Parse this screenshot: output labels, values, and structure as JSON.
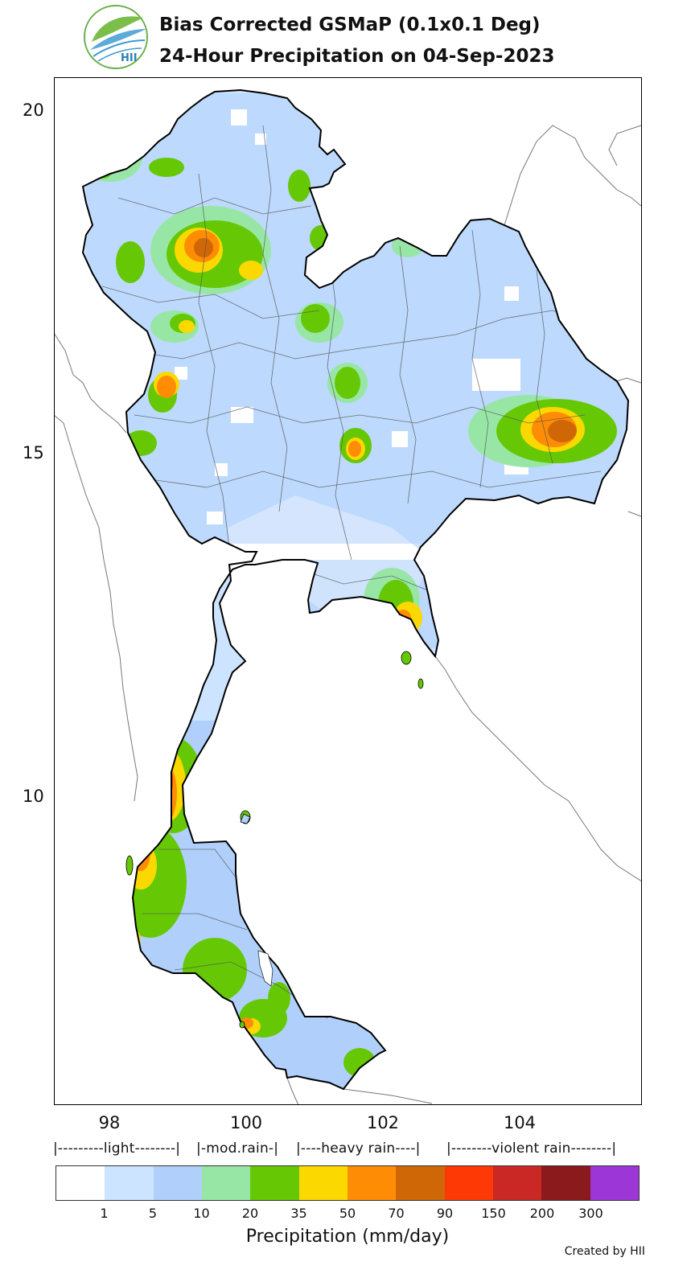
{
  "header": {
    "title_line1": "Bias Corrected GSMaP (0.1x0.1 Deg)",
    "title_line2": "24-Hour Precipitation on 04-Sep-2023",
    "logo_text": "HII"
  },
  "map": {
    "y_ticks": [
      "20",
      "15",
      "10"
    ],
    "x_ticks": [
      "98",
      "100",
      "102",
      "104"
    ]
  },
  "legend": {
    "categories": [
      "|---------light--------|",
      "|-mod.rain-|",
      "|----heavy rain----|",
      "|--------violent rain--------|"
    ],
    "colors": [
      "#ffffff",
      "#cce4ff",
      "#b0d0fb",
      "#98e6a6",
      "#66c804",
      "#fad800",
      "#ff8c05",
      "#d06707",
      "#ff3905",
      "#ca2825",
      "#8a1a1c",
      "#9c36d6"
    ],
    "tick_labels": [
      "1",
      "5",
      "10",
      "20",
      "35",
      "50",
      "70",
      "90",
      "150",
      "200",
      "300"
    ],
    "label": "Precipitation (mm/day)"
  },
  "footer": {
    "credit": "Created by HII"
  }
}
